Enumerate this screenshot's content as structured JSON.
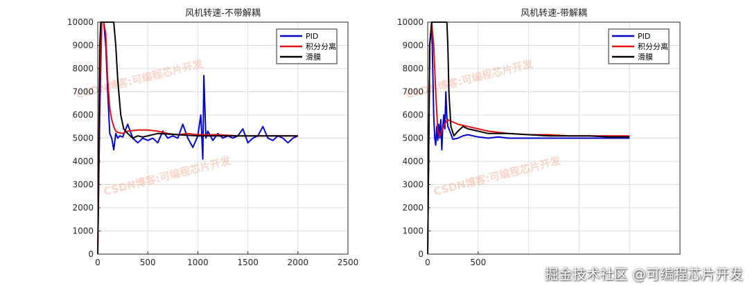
{
  "watermarks": {
    "blog": "CSDN博客:可编程芯片开发",
    "footer": "掘金技术社区 @可编程芯片开发"
  },
  "chart_data": [
    {
      "type": "line",
      "title": "风机转速-不带解耦",
      "xlim": [
        0,
        2500
      ],
      "ylim": [
        0,
        10000
      ],
      "xticks": [
        0,
        500,
        1000,
        1500,
        2000,
        2500
      ],
      "yticks": [
        0,
        1000,
        2000,
        3000,
        4000,
        5000,
        6000,
        7000,
        8000,
        9000,
        10000
      ],
      "grid": true,
      "legend": "top-right",
      "series": [
        {
          "name": "PID",
          "color": "#0000cc",
          "x": [
            0,
            20,
            40,
            60,
            80,
            100,
            120,
            140,
            160,
            180,
            200,
            220,
            250,
            300,
            350,
            400,
            450,
            500,
            550,
            600,
            650,
            700,
            750,
            800,
            850,
            900,
            950,
            1000,
            1030,
            1050,
            1060,
            1080,
            1100,
            1150,
            1200,
            1250,
            1300,
            1350,
            1400,
            1450,
            1500,
            1550,
            1600,
            1650,
            1700,
            1750,
            1800,
            1850,
            1900,
            1950,
            2000
          ],
          "y": [
            0,
            6000,
            10000,
            10000,
            9000,
            7000,
            5200,
            5000,
            4500,
            5200,
            5000,
            5100,
            5050,
            5600,
            5000,
            4800,
            5000,
            4900,
            5000,
            4800,
            5300,
            5000,
            5100,
            5000,
            5600,
            5000,
            4600,
            5100,
            6000,
            4100,
            7700,
            5000,
            5300,
            4900,
            5200,
            5000,
            5100,
            5000,
            5100,
            5400,
            4800,
            5000,
            5100,
            5500,
            5000,
            4900,
            5100,
            5000,
            4800,
            5000,
            5100
          ]
        },
        {
          "name": "积分分离",
          "color": "#e01010",
          "x": [
            0,
            20,
            40,
            60,
            80,
            100,
            120,
            140,
            160,
            180,
            200,
            250,
            300,
            400,
            500,
            600,
            700,
            800,
            900,
            1000,
            1200,
            1400,
            1600,
            1800,
            2000
          ],
          "y": [
            0,
            7000,
            10000,
            10000,
            9500,
            7500,
            6300,
            5800,
            5500,
            5300,
            5250,
            5200,
            5300,
            5350,
            5350,
            5300,
            5200,
            5150,
            5200,
            5150,
            5150,
            5100,
            5100,
            5100,
            5100
          ]
        },
        {
          "name": "滑膜",
          "color": "#000000",
          "x": [
            0,
            20,
            30,
            40,
            60,
            80,
            100,
            130,
            160,
            180,
            200,
            230,
            260,
            300,
            350,
            400,
            450,
            500,
            600,
            800,
            1000,
            1200,
            1400,
            1600,
            1800,
            2000
          ],
          "y": [
            0,
            9000,
            10000,
            10000,
            10000,
            10000,
            10000,
            10000,
            10000,
            9000,
            7500,
            6000,
            5400,
            5200,
            5000,
            5100,
            5050,
            5100,
            5200,
            5150,
            5100,
            5100,
            5100,
            5100,
            5100,
            5100
          ]
        }
      ]
    },
    {
      "type": "line",
      "title": "风机转速-带解耦",
      "xlim": [
        0,
        2500
      ],
      "ylim": [
        0,
        10000
      ],
      "xticks": [
        0,
        500
      ],
      "yticks": [
        0,
        1000,
        2000,
        3000,
        4000,
        5000,
        6000,
        7000,
        8000,
        9000,
        10000
      ],
      "grid": true,
      "legend": "top-right",
      "series": [
        {
          "name": "PID",
          "color": "#0000cc",
          "x": [
            0,
            20,
            40,
            50,
            60,
            70,
            80,
            90,
            100,
            110,
            120,
            130,
            140,
            150,
            160,
            170,
            180,
            190,
            200,
            220,
            250,
            300,
            350,
            400,
            450,
            500,
            600,
            700,
            800,
            1000,
            1200,
            1400,
            1600,
            1800,
            2000
          ],
          "y": [
            0,
            9000,
            10000,
            8000,
            6000,
            5000,
            4700,
            5500,
            4900,
            5600,
            5000,
            5800,
            4500,
            5500,
            6000,
            5400,
            7000,
            5900,
            5500,
            5300,
            4950,
            5000,
            5100,
            5150,
            5100,
            5050,
            5000,
            5050,
            5000,
            5000,
            5000,
            5000,
            5000,
            5000,
            5000
          ]
        },
        {
          "name": "积分分离",
          "color": "#e01010",
          "x": [
            0,
            20,
            40,
            60,
            80,
            100,
            120,
            150,
            180,
            200,
            220,
            250,
            300,
            350,
            400,
            450,
            500,
            600,
            700,
            800,
            1000,
            1200,
            1400,
            1600,
            1800,
            2000
          ],
          "y": [
            0,
            9000,
            10000,
            9000,
            7000,
            5300,
            5100,
            5400,
            5700,
            5800,
            5750,
            5700,
            5600,
            5550,
            5500,
            5450,
            5400,
            5300,
            5250,
            5200,
            5150,
            5150,
            5100,
            5100,
            5100,
            5100
          ]
        },
        {
          "name": "滑膜",
          "color": "#000000",
          "x": [
            0,
            20,
            40,
            60,
            80,
            100,
            130,
            160,
            190,
            200,
            210,
            230,
            260,
            300,
            350,
            400,
            500,
            600,
            700,
            800,
            1000,
            1200,
            1400,
            1600,
            1800,
            2000
          ],
          "y": [
            0,
            9000,
            10000,
            10000,
            10000,
            10000,
            10000,
            10000,
            10000,
            9000,
            7000,
            5500,
            5100,
            5300,
            5500,
            5400,
            5300,
            5200,
            5200,
            5200,
            5150,
            5100,
            5100,
            5100,
            5050,
            5050
          ]
        }
      ]
    }
  ]
}
